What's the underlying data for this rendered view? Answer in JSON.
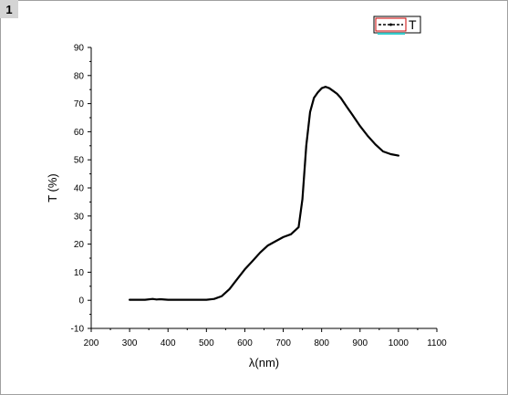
{
  "page": {
    "badge": "1"
  },
  "chart_data": {
    "type": "line",
    "title": "",
    "xlabel": "λ(nm)",
    "ylabel": "T (%)",
    "xlim": [
      200,
      1100
    ],
    "ylim": [
      -10,
      90
    ],
    "xticks": [
      200,
      300,
      400,
      500,
      600,
      700,
      800,
      900,
      1000,
      1100
    ],
    "yticks": [
      -10,
      0,
      10,
      20,
      30,
      40,
      50,
      60,
      70,
      80,
      90
    ],
    "grid": false,
    "legend_position": "top-right",
    "colors": {
      "line": "#000000",
      "legend_box": "#cc0000",
      "legend_accent": "#33cccc"
    },
    "series": [
      {
        "name": "T",
        "x": [
          300,
          320,
          340,
          360,
          370,
          380,
          400,
          450,
          500,
          520,
          540,
          560,
          580,
          600,
          620,
          640,
          660,
          680,
          700,
          720,
          740,
          750,
          760,
          770,
          780,
          790,
          800,
          810,
          820,
          830,
          840,
          850,
          860,
          870,
          880,
          900,
          920,
          940,
          960,
          980,
          1000
        ],
        "y": [
          0.2,
          0.2,
          0.2,
          0.5,
          0.3,
          0.4,
          0.2,
          0.2,
          0.2,
          0.5,
          1.5,
          4,
          7.5,
          11,
          14,
          17,
          19.5,
          21,
          22.5,
          23.5,
          26,
          36,
          55,
          67,
          72,
          74,
          75.5,
          76,
          75.5,
          74.5,
          73.5,
          72,
          70,
          68,
          66,
          62,
          58.5,
          55.5,
          53,
          52,
          51.5
        ]
      }
    ]
  }
}
